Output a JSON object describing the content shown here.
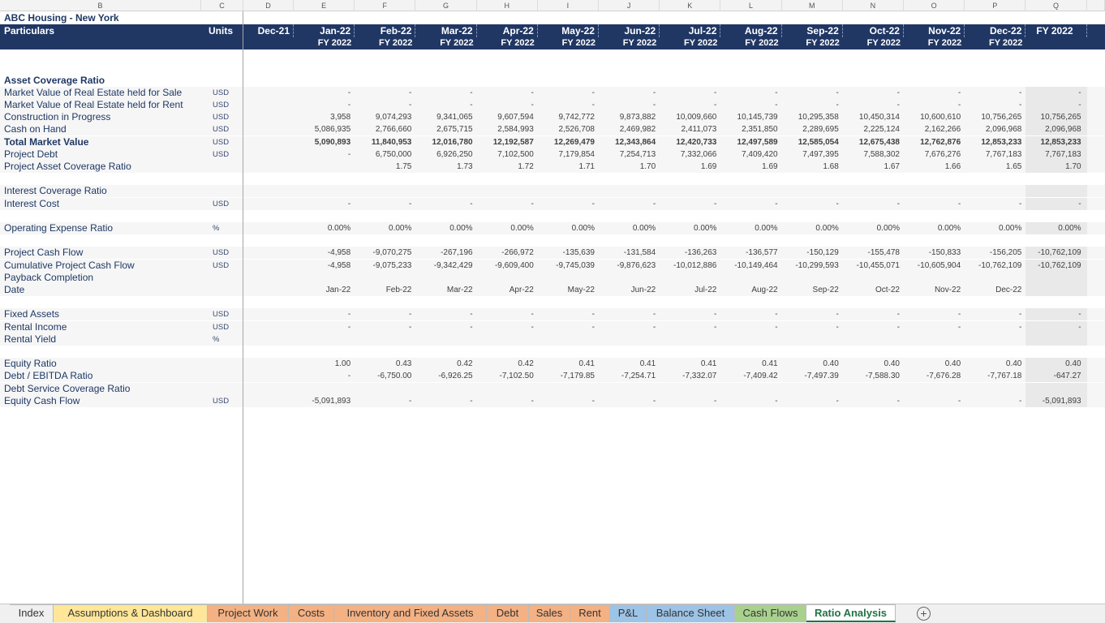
{
  "column_headers": [
    "B",
    "C",
    "D",
    "E",
    "F",
    "G",
    "H",
    "I",
    "J",
    "K",
    "L",
    "M",
    "N",
    "O",
    "P",
    "Q"
  ],
  "title": "ABC Housing - New York",
  "header": {
    "particulars": "Particulars",
    "units": "Units",
    "periods": [
      "Dec-21",
      "Jan-22",
      "Feb-22",
      "Mar-22",
      "Apr-22",
      "May-22",
      "Jun-22",
      "Jul-22",
      "Aug-22",
      "Sep-22",
      "Oct-22",
      "Nov-22",
      "Dec-22",
      "FY 2022"
    ],
    "fiscal_years": [
      null,
      "FY 2022",
      "FY 2022",
      "FY 2022",
      "FY 2022",
      "FY 2022",
      "FY 2022",
      "FY 2022",
      "FY 2022",
      "FY 2022",
      "FY 2022",
      "FY 2022",
      "FY 2022",
      null
    ]
  },
  "rows": [
    {
      "label": "Asset Coverage Ratio",
      "style": "section"
    },
    {
      "label": "Market Value of Real Estate held for Sale",
      "units": "USD",
      "cells": [
        null,
        "-",
        "-",
        "-",
        "-",
        "-",
        "-",
        "-",
        "-",
        "-",
        "-",
        "-",
        "-",
        "-"
      ]
    },
    {
      "label": "Market Value of Real Estate held for Rent",
      "units": "USD",
      "cells": [
        null,
        "-",
        "-",
        "-",
        "-",
        "-",
        "-",
        "-",
        "-",
        "-",
        "-",
        "-",
        "-",
        "-"
      ]
    },
    {
      "label": "Construction in  Progress",
      "units": "USD",
      "cells": [
        null,
        "3,958",
        "9,074,293",
        "9,341,065",
        "9,607,594",
        "9,742,772",
        "9,873,882",
        "10,009,660",
        "10,145,739",
        "10,295,358",
        "10,450,314",
        "10,600,610",
        "10,756,265",
        "10,756,265"
      ]
    },
    {
      "label": "Cash on  Hand",
      "units": "USD",
      "cells": [
        null,
        "5,086,935",
        "2,766,660",
        "2,675,715",
        "2,584,993",
        "2,526,708",
        "2,469,982",
        "2,411,073",
        "2,351,850",
        "2,289,695",
        "2,225,124",
        "2,162,266",
        "2,096,968",
        "2,096,968"
      ]
    },
    {
      "label": "Total Market Value",
      "units": "USD",
      "style": "total",
      "cells": [
        null,
        "5,090,893",
        "11,840,953",
        "12,016,780",
        "12,192,587",
        "12,269,479",
        "12,343,864",
        "12,420,733",
        "12,497,589",
        "12,585,054",
        "12,675,438",
        "12,762,876",
        "12,853,233",
        "12,853,233"
      ]
    },
    {
      "label": "Project Debt",
      "units": "USD",
      "cells": [
        null,
        "-",
        "6,750,000",
        "6,926,250",
        "7,102,500",
        "7,179,854",
        "7,254,713",
        "7,332,066",
        "7,409,420",
        "7,497,395",
        "7,588,302",
        "7,676,276",
        "7,767,183",
        "7,767,183"
      ]
    },
    {
      "label": "Project Asset Coverage Ratio",
      "cells": [
        null,
        null,
        "1.75",
        "1.73",
        "1.72",
        "1.71",
        "1.70",
        "1.69",
        "1.69",
        "1.68",
        "1.67",
        "1.66",
        "1.65",
        "1.70"
      ]
    },
    null,
    {
      "label": "Interest Coverage Ratio"
    },
    {
      "label": "Interest Cost",
      "units": "USD",
      "cells": [
        null,
        "-",
        "-",
        "-",
        "-",
        "-",
        "-",
        "-",
        "-",
        "-",
        "-",
        "-",
        "-",
        "-"
      ]
    },
    null,
    {
      "label": "Operating Expense Ratio",
      "units": "%",
      "cells": [
        null,
        "0.00%",
        "0.00%",
        "0.00%",
        "0.00%",
        "0.00%",
        "0.00%",
        "0.00%",
        "0.00%",
        "0.00%",
        "0.00%",
        "0.00%",
        "0.00%",
        "0.00%"
      ]
    },
    null,
    {
      "label": "Project Cash Flow",
      "units": "USD",
      "cells": [
        null,
        "-4,958",
        "-9,070,275",
        "-267,196",
        "-266,972",
        "-135,639",
        "-131,584",
        "-136,263",
        "-136,577",
        "-150,129",
        "-155,478",
        "-150,833",
        "-156,205",
        "-10,762,109"
      ]
    },
    {
      "label": "Cumulative Project Cash Flow",
      "units": "USD",
      "cells": [
        null,
        "-4,958",
        "-9,075,233",
        "-9,342,429",
        "-9,609,400",
        "-9,745,039",
        "-9,876,623",
        "-10,012,886",
        "-10,149,464",
        "-10,299,593",
        "-10,455,071",
        "-10,605,904",
        "-10,762,109",
        "-10,762,109"
      ]
    },
    {
      "label": "Payback Completion"
    },
    {
      "label": "Date",
      "cells": [
        null,
        "Jan-22",
        "Feb-22",
        "Mar-22",
        "Apr-22",
        "May-22",
        "Jun-22",
        "Jul-22",
        "Aug-22",
        "Sep-22",
        "Oct-22",
        "Nov-22",
        "Dec-22",
        null
      ]
    },
    null,
    {
      "label": "Fixed Assets",
      "units": "USD",
      "cells": [
        null,
        "-",
        "-",
        "-",
        "-",
        "-",
        "-",
        "-",
        "-",
        "-",
        "-",
        "-",
        "-",
        "-"
      ]
    },
    {
      "label": "Rental Income",
      "units": "USD",
      "cells": [
        null,
        "-",
        "-",
        "-",
        "-",
        "-",
        "-",
        "-",
        "-",
        "-",
        "-",
        "-",
        "-",
        "-"
      ]
    },
    {
      "label": "Rental Yield",
      "units": "%"
    },
    null,
    {
      "label": "Equity Ratio",
      "cells": [
        null,
        "1.00",
        "0.43",
        "0.42",
        "0.42",
        "0.41",
        "0.41",
        "0.41",
        "0.41",
        "0.40",
        "0.40",
        "0.40",
        "0.40",
        "0.40"
      ]
    },
    {
      "label": "Debt / EBITDA Ratio",
      "cells": [
        null,
        "-",
        "-6,750.00",
        "-6,926.25",
        "-7,102.50",
        "-7,179.85",
        "-7,254.71",
        "-7,332.07",
        "-7,409.42",
        "-7,497.39",
        "-7,588.30",
        "-7,676.28",
        "-7,767.18",
        "-647.27"
      ]
    },
    {
      "label": "Debt Service Coverage Ratio"
    },
    {
      "label": "Equity Cash Flow",
      "units": "USD",
      "cells": [
        null,
        "-5,091,893",
        "-",
        "-",
        "-",
        "-",
        "-",
        "-",
        "-",
        "-",
        "-",
        "-",
        "-",
        "-5,091,893"
      ]
    }
  ],
  "tabs": [
    {
      "name": "Index",
      "color": "#f0f0f0"
    },
    {
      "name": "Assumptions & Dashboard",
      "color": "#ffe699"
    },
    {
      "name": "Project Work",
      "color": "#f4b183"
    },
    {
      "name": "Costs",
      "color": "#f4b183"
    },
    {
      "name": "Inventory and Fixed Assets",
      "color": "#f4b183"
    },
    {
      "name": "Debt",
      "color": "#f4b183"
    },
    {
      "name": "Sales",
      "color": "#f4b183"
    },
    {
      "name": "Rent",
      "color": "#f4b183"
    },
    {
      "name": "P&L",
      "color": "#9dc3e6"
    },
    {
      "name": "Balance Sheet",
      "color": "#9dc3e6"
    },
    {
      "name": "Cash Flows",
      "color": "#a9d18e"
    },
    {
      "name": "Ratio Analysis",
      "color": "#ffffff",
      "active": true
    }
  ]
}
